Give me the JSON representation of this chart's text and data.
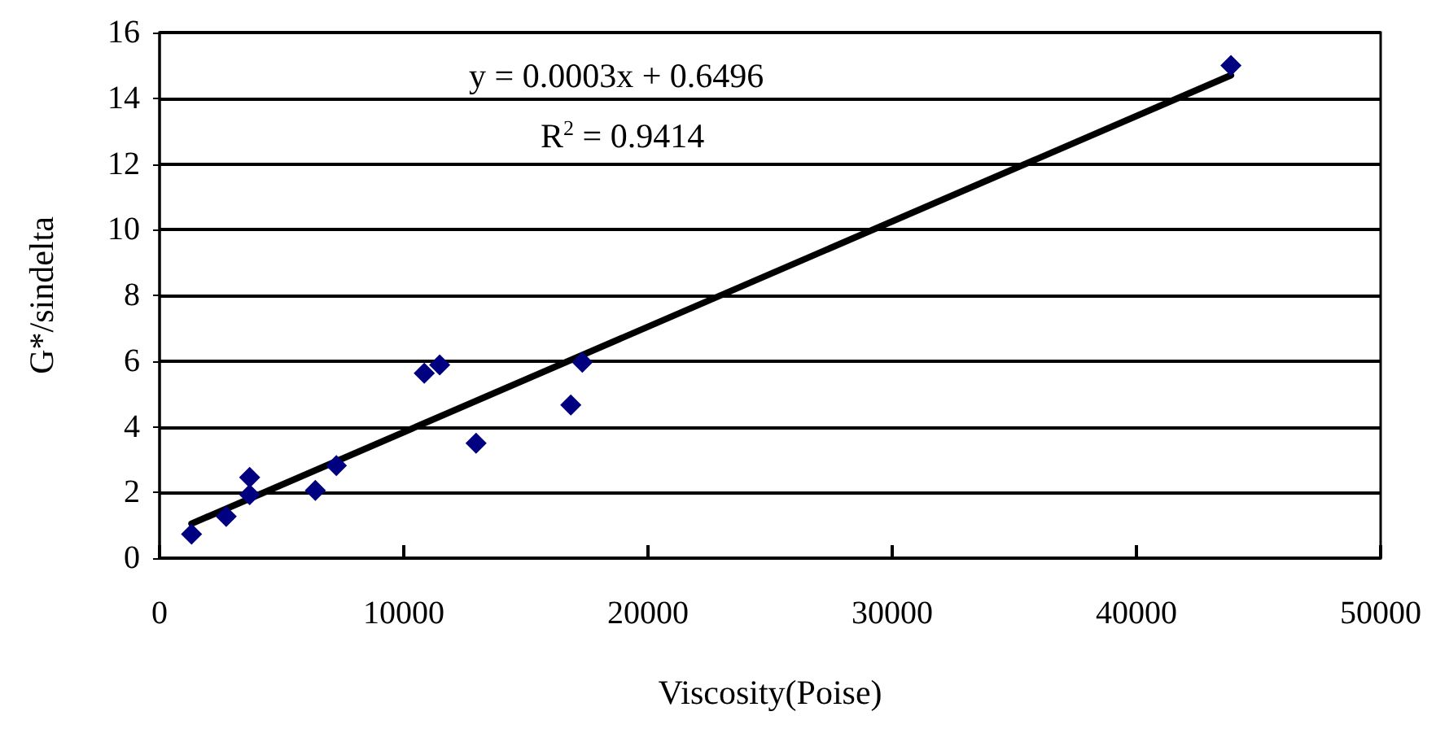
{
  "chart_data": {
    "type": "scatter",
    "xlabel": "Viscosity(Poise)",
    "ylabel": "G*/sindelta",
    "annotations": [
      "y = 0.0003x + 0.6496",
      "R$^{2}$ = 0.9414"
    ],
    "series": [
      {
        "color": "#000080",
        "marker": "diamond",
        "x": [
          1310,
          2730,
          3690,
          3690,
          6380,
          7240,
          10840,
          11470,
          12960,
          16840,
          17310,
          43870
        ],
        "values": [
          0.73,
          1.27,
          2.46,
          1.93,
          2.06,
          2.82,
          5.63,
          5.88,
          3.5,
          4.66,
          5.96,
          15.0
        ]
      },
      {
        "type": "line",
        "color": "#000000",
        "marker": "none",
        "x": [
          1310,
          43870
        ],
        "values": [
          1.05,
          14.7
        ]
      }
    ],
    "xlim": [
      0,
      50000
    ],
    "xticks": [
      0,
      10000,
      20000,
      30000,
      40000,
      50000
    ],
    "ylim": [
      0,
      16
    ],
    "yticks": [
      0,
      2,
      4,
      6,
      8,
      10,
      12,
      14,
      16
    ],
    "grid": "y"
  }
}
